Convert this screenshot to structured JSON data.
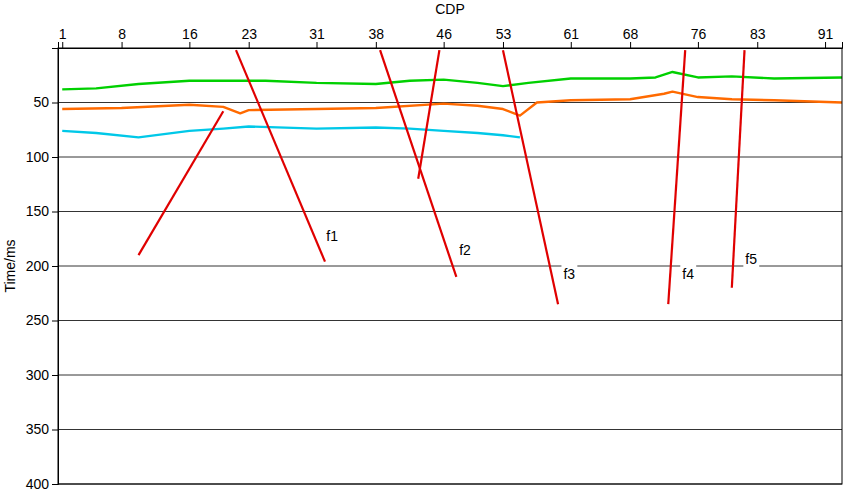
{
  "chart_data": {
    "type": "line",
    "x_label": "CDP",
    "y_label": "Time/ms",
    "xlim": [
      0.5,
      93
    ],
    "xticks": [
      1,
      8,
      16,
      23,
      31,
      38,
      46,
      53,
      61,
      68,
      76,
      83,
      91
    ],
    "ylim": [
      0,
      400
    ],
    "yticks": [
      50,
      100,
      150,
      200,
      250,
      300,
      350,
      400
    ],
    "grid": true,
    "series": [
      {
        "color": "#00d000",
        "line_style": "solid",
        "x": [
          1,
          5,
          10,
          16,
          20,
          25,
          31,
          38,
          42,
          46,
          50,
          53,
          56,
          61,
          68,
          71,
          73,
          76,
          80,
          85,
          93
        ],
        "values": [
          38,
          37,
          33,
          30,
          30,
          30,
          32,
          33,
          30,
          29,
          32,
          35,
          32,
          28,
          28,
          27,
          22,
          27,
          26,
          28,
          27
        ]
      },
      {
        "color": "#ff6a00",
        "line_style": "solid",
        "x": [
          1,
          8,
          16,
          20,
          22,
          23,
          31,
          38,
          46,
          50,
          53,
          55,
          57,
          61,
          68,
          72,
          73,
          76,
          80,
          85,
          93
        ],
        "values": [
          56,
          55,
          52,
          54,
          60,
          57,
          56,
          55,
          51,
          53,
          56,
          62,
          50,
          48,
          47,
          42,
          40,
          45,
          47,
          48,
          50
        ]
      },
      {
        "color": "#00c8e8",
        "line_style": "solid",
        "x": [
          1,
          5,
          10,
          16,
          20,
          23,
          31,
          38,
          42,
          46,
          50,
          53,
          55
        ],
        "values": [
          76,
          78,
          82,
          76,
          74,
          72,
          74,
          73,
          74,
          76,
          78,
          80,
          82
        ]
      },
      {
        "name": "f1",
        "color": "#e00000",
        "line_style": "solid",
        "x": [
          21.5,
          32
        ],
        "values": [
          2,
          196
        ]
      },
      {
        "color": "#e00000",
        "line_style": "solid",
        "x": [
          20,
          10
        ],
        "values": [
          58,
          190
        ]
      },
      {
        "name": "f2",
        "color": "#e00000",
        "line_style": "solid",
        "x": [
          38.5,
          47.5
        ],
        "values": [
          2,
          210
        ]
      },
      {
        "color": "#e00000",
        "line_style": "solid",
        "x": [
          45.5,
          43
        ],
        "values": [
          2,
          120
        ]
      },
      {
        "name": "f3",
        "color": "#e00000",
        "line_style": "solid",
        "x": [
          53,
          59.5
        ],
        "values": [
          2,
          235
        ]
      },
      {
        "name": "f4",
        "color": "#e00000",
        "line_style": "solid",
        "x": [
          74.5,
          72.5
        ],
        "values": [
          2,
          235
        ]
      },
      {
        "name": "f5",
        "color": "#e00000",
        "line_style": "solid",
        "x": [
          81.5,
          80
        ],
        "values": [
          2,
          220
        ]
      }
    ]
  }
}
